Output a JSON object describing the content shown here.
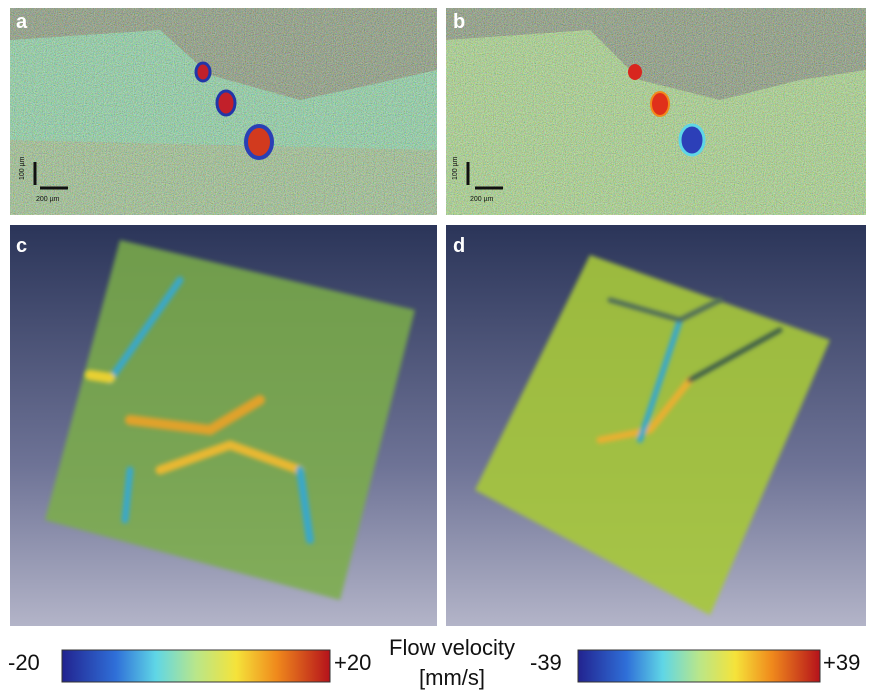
{
  "panels": [
    {
      "label": "a"
    },
    {
      "label": "b"
    },
    {
      "label": "c"
    },
    {
      "label": "d"
    }
  ],
  "scale_bars": {
    "vertical": "100 µm",
    "horizontal": "200 µm"
  },
  "colorbars": [
    {
      "min": "-20",
      "max": "+20"
    },
    {
      "min": "-39",
      "max": "+39"
    }
  ],
  "colorbar_title": [
    "Flow velocity",
    "[mm/s]"
  ]
}
